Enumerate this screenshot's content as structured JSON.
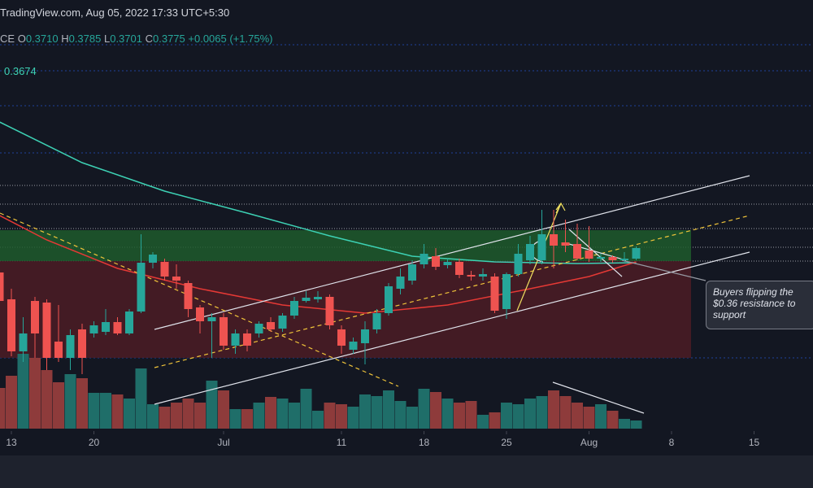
{
  "header": {
    "source": "TradingView.com, Aug 05, 2022 17:33 UTC+5:30",
    "symbol": "CE",
    "ohlc": [
      {
        "label": "O",
        "value": "0.3710"
      },
      {
        "label": "H",
        "value": "0.3785"
      },
      {
        "label": "L",
        "value": "0.3701"
      },
      {
        "label": "C",
        "value": "0.3775"
      }
    ],
    "change": "+0.0065 (+1.75%)",
    "indicator_value": "0.3674"
  },
  "chart_data": {
    "type": "candlestick",
    "x": [
      "2022-06-12",
      "2022-06-13",
      "2022-06-14",
      "2022-06-15",
      "2022-06-16",
      "2022-06-17",
      "2022-06-18",
      "2022-06-19",
      "2022-06-20",
      "2022-06-21",
      "2022-06-22",
      "2022-06-23",
      "2022-06-24",
      "2022-06-25",
      "2022-06-26",
      "2022-06-27",
      "2022-06-28",
      "2022-06-29",
      "2022-06-30",
      "2022-07-01",
      "2022-07-02",
      "2022-07-03",
      "2022-07-04",
      "2022-07-05",
      "2022-07-06",
      "2022-07-07",
      "2022-07-08",
      "2022-07-09",
      "2022-07-10",
      "2022-07-11",
      "2022-07-12",
      "2022-07-13",
      "2022-07-14",
      "2022-07-15",
      "2022-07-16",
      "2022-07-17",
      "2022-07-18",
      "2022-07-19",
      "2022-07-20",
      "2022-07-21",
      "2022-07-22",
      "2022-07-23",
      "2022-07-24",
      "2022-07-25",
      "2022-07-26",
      "2022-07-27",
      "2022-07-28",
      "2022-07-29",
      "2022-07-30",
      "2022-07-31",
      "2022-08-01",
      "2022-08-02",
      "2022-08-03",
      "2022-08-04",
      "2022-08-05"
    ],
    "open": [
      0.3625,
      0.346,
      0.314,
      0.345,
      0.344,
      0.32,
      0.31,
      0.3275,
      0.325,
      0.326,
      0.332,
      0.325,
      0.3385,
      0.3685,
      0.369,
      0.36,
      0.356,
      0.341,
      0.3325,
      0.335,
      0.3175,
      0.325,
      0.325,
      0.332,
      0.328,
      0.336,
      0.345,
      0.346,
      0.3475,
      0.3275,
      0.315,
      0.319,
      0.3275,
      0.3375,
      0.3525,
      0.3575,
      0.3675,
      0.3725,
      0.367,
      0.369,
      0.361,
      0.36,
      0.36,
      0.34,
      0.3615,
      0.37,
      0.37,
      0.386,
      0.381,
      0.38,
      0.376,
      0.371,
      0.372,
      0.37,
      0.371
    ],
    "high": [
      0.37,
      0.3525,
      0.335,
      0.3475,
      0.346,
      0.3425,
      0.3275,
      0.331,
      0.3325,
      0.34,
      0.335,
      0.34,
      0.386,
      0.375,
      0.371,
      0.3675,
      0.3575,
      0.3425,
      0.3375,
      0.3375,
      0.3275,
      0.3275,
      0.3325,
      0.335,
      0.3375,
      0.3475,
      0.351,
      0.351,
      0.349,
      0.33,
      0.3225,
      0.3325,
      0.34,
      0.356,
      0.365,
      0.37,
      0.38,
      0.3775,
      0.371,
      0.371,
      0.3635,
      0.365,
      0.362,
      0.3625,
      0.38,
      0.385,
      0.401,
      0.401,
      0.395,
      0.3925,
      0.391,
      0.374,
      0.373,
      0.375,
      0.3785
    ],
    "low": [
      0.34,
      0.311,
      0.3075,
      0.31,
      0.3025,
      0.3075,
      0.3025,
      0.3,
      0.3225,
      0.324,
      0.324,
      0.324,
      0.3375,
      0.365,
      0.3575,
      0.3525,
      0.335,
      0.325,
      0.31,
      0.315,
      0.3125,
      0.314,
      0.3225,
      0.326,
      0.326,
      0.334,
      0.344,
      0.344,
      0.3275,
      0.3125,
      0.3125,
      0.306,
      0.325,
      0.336,
      0.349,
      0.355,
      0.365,
      0.364,
      0.365,
      0.359,
      0.3575,
      0.3575,
      0.3375,
      0.334,
      0.36,
      0.3675,
      0.3675,
      0.365,
      0.375,
      0.37,
      0.369,
      0.369,
      0.3685,
      0.369,
      0.3701
    ],
    "close": [
      0.345,
      0.314,
      0.325,
      0.325,
      0.31,
      0.31,
      0.324,
      0.31,
      0.33,
      0.332,
      0.325,
      0.3385,
      0.3685,
      0.3735,
      0.36,
      0.3575,
      0.34,
      0.3325,
      0.335,
      0.3175,
      0.325,
      0.3175,
      0.331,
      0.3275,
      0.336,
      0.345,
      0.347,
      0.3475,
      0.33,
      0.3175,
      0.32,
      0.3275,
      0.3375,
      0.354,
      0.36,
      0.3675,
      0.374,
      0.366,
      0.369,
      0.361,
      0.36,
      0.3615,
      0.339,
      0.3615,
      0.374,
      0.38,
      0.386,
      0.379,
      0.379,
      0.371,
      0.371,
      0.372,
      0.37,
      0.371,
      0.3775
    ],
    "volume": [
      50,
      65,
      92,
      87,
      72,
      57,
      67,
      62,
      44,
      44,
      42,
      37,
      74,
      30,
      27,
      32,
      37,
      32,
      59,
      47,
      24,
      24,
      32,
      39,
      37,
      32,
      49,
      22,
      32,
      30,
      27,
      42,
      40,
      47,
      34,
      27,
      49,
      45,
      37,
      32,
      34,
      17,
      20,
      32,
      30,
      37,
      40,
      47,
      40,
      32,
      27,
      30,
      22,
      12,
      10
    ],
    "colors": {
      "up": "#26a69a",
      "down": "#ef5350",
      "volume_up": "#1f6e69",
      "volume_down": "#8e3b3b"
    },
    "xlim": [
      "2022-06-12",
      "2022-08-21"
    ],
    "ylim": [
      0.265,
      0.53
    ],
    "vlim": [
      0,
      100
    ],
    "xticks": [
      {
        "value": "2022-06-13",
        "label": "13"
      },
      {
        "value": "2022-06-20",
        "label": "20"
      },
      {
        "value": "2022-07-01",
        "label": "Jul"
      },
      {
        "value": "2022-07-11",
        "label": "11"
      },
      {
        "value": "2022-07-18",
        "label": "18"
      },
      {
        "value": "2022-07-25",
        "label": "25"
      },
      {
        "value": "2022-08-01",
        "label": "Aug"
      },
      {
        "value": "2022-08-08",
        "label": "8"
      },
      {
        "value": "2022-08-15",
        "label": "15"
      }
    ],
    "lines": [
      {
        "color": "#3dd1b4",
        "x": [
          "2022-06-12",
          "2022-06-19",
          "2022-06-26",
          "2022-07-03",
          "2022-07-10",
          "2022-07-17",
          "2022-07-24",
          "2022-07-31",
          "2022-08-05"
        ],
        "values": [
          0.455,
          0.43,
          0.4125,
          0.399,
          0.385,
          0.3725,
          0.369,
          0.368,
          0.3685
        ]
      },
      {
        "color": "#e53935",
        "x": [
          "2022-06-12",
          "2022-06-16",
          "2022-06-22",
          "2022-06-29",
          "2022-07-06",
          "2022-07-13",
          "2022-07-20",
          "2022-07-27",
          "2022-08-01",
          "2022-08-05"
        ],
        "values": [
          0.3975,
          0.3825,
          0.365,
          0.3525,
          0.3425,
          0.3375,
          0.3425,
          0.3525,
          0.36,
          0.369
        ]
      }
    ],
    "annotation": [
      "Buyers flipping the",
      "$0.36 resistance to",
      "support"
    ]
  }
}
